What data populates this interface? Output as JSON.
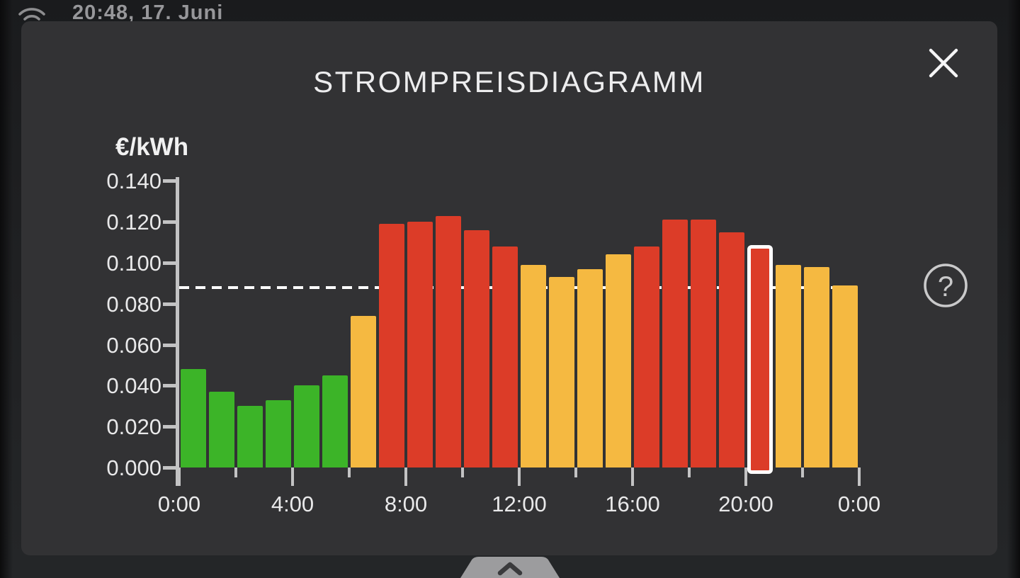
{
  "status_bar": {
    "datetime": "20:48, 17. Juni"
  },
  "dialog": {
    "title": "STROMPREISDIAGRAMM",
    "help_icon": "?"
  },
  "icons": {
    "wifi": "wifi-arcs",
    "close": "✕",
    "help": "?",
    "handle_chevron": "chevron-up"
  },
  "chart_data": {
    "type": "bar",
    "title": "STROMPREISDIAGRAMM",
    "ylabel": "€/kWh",
    "xlabel": "",
    "ylim": [
      0,
      0.14
    ],
    "ytick_step": 0.02,
    "ytick_labels": [
      "0.000",
      "0.020",
      "0.040",
      "0.060",
      "0.080",
      "0.100",
      "0.120",
      "0.140"
    ],
    "xtick_hours": [
      0,
      2,
      4,
      6,
      8,
      10,
      12,
      14,
      16,
      18,
      20,
      22,
      24
    ],
    "xtick_labeled_hours": [
      0,
      4,
      8,
      12,
      16,
      20,
      24
    ],
    "xtick_labels": [
      "0:00",
      "4:00",
      "8:00",
      "12:00",
      "16:00",
      "20:00",
      "0:00"
    ],
    "hours": [
      0,
      1,
      2,
      3,
      4,
      5,
      6,
      7,
      8,
      9,
      10,
      11,
      12,
      13,
      14,
      15,
      16,
      17,
      18,
      19,
      20,
      21,
      22,
      23
    ],
    "values": [
      0.048,
      0.037,
      0.03,
      0.033,
      0.04,
      0.045,
      0.074,
      0.119,
      0.12,
      0.123,
      0.116,
      0.108,
      0.099,
      0.093,
      0.097,
      0.104,
      0.108,
      0.121,
      0.121,
      0.115,
      0.107,
      0.099,
      0.098,
      0.089
    ],
    "levels": [
      "green",
      "green",
      "green",
      "green",
      "green",
      "green",
      "orange",
      "red",
      "red",
      "red",
      "red",
      "red",
      "orange",
      "orange",
      "orange",
      "orange",
      "red",
      "red",
      "red",
      "red",
      "red",
      "orange",
      "orange",
      "orange"
    ],
    "highlight_hour": 20,
    "average_line_value": 0.088,
    "grid": false,
    "legend": false,
    "colors": {
      "green": "#3cb428",
      "orange": "#f5b941",
      "red": "#dc3c28",
      "highlight_border": "#ffffff",
      "axis": "#c3c3c4",
      "tick_label": "#e9e9ea",
      "average_line": "#ffffff",
      "dialog_bg": "#323234",
      "screen_bg": "#1e1f21"
    }
  }
}
